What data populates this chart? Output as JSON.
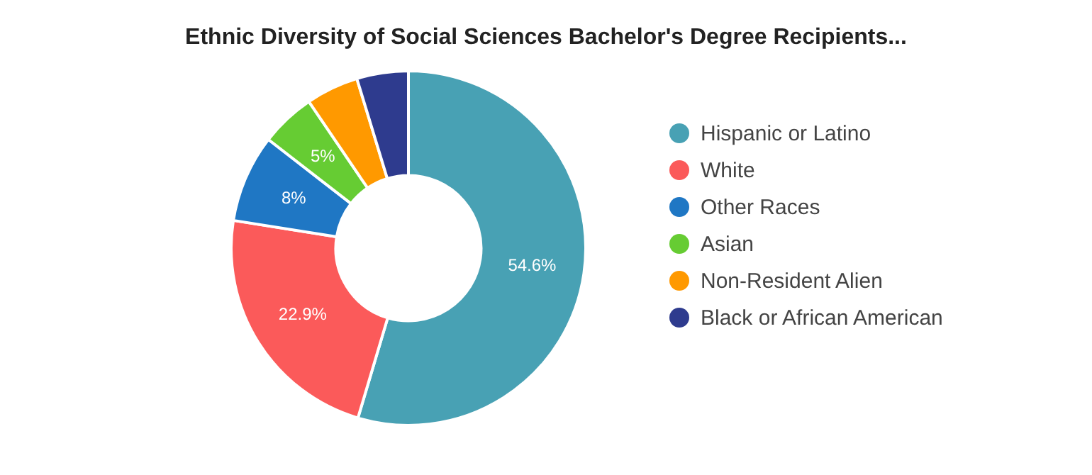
{
  "chart_data": {
    "type": "donut",
    "title": "Ethnic Diversity of Social Sciences Bachelor's Degree Recipients...",
    "categories": [
      "Hispanic or Latino",
      "White",
      "Other Races",
      "Asian",
      "Non-Resident Alien",
      "Black or African American"
    ],
    "values": [
      54.6,
      22.9,
      8,
      5,
      4.8,
      4.7
    ],
    "colors": [
      "#48a1b4",
      "#fb5a5a",
      "#1f77c4",
      "#66cc33",
      "#ff9900",
      "#2e3b8e"
    ],
    "value_labels": [
      "54.6%",
      "22.9%",
      "8%",
      "5%",
      null,
      null
    ],
    "legend": "right"
  }
}
